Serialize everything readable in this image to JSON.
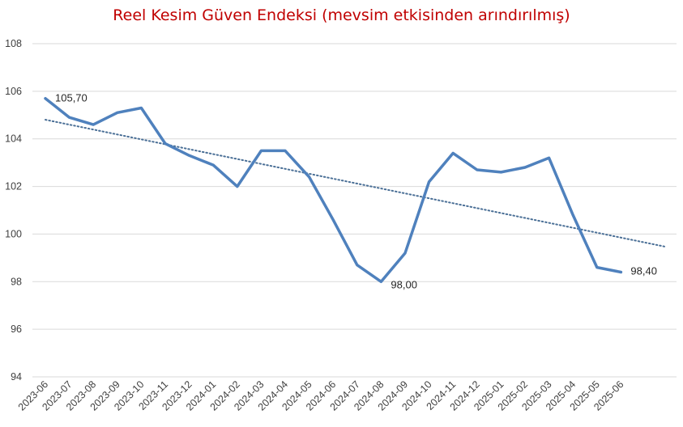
{
  "chart_data": {
    "type": "line",
    "title": "Reel Kesim Güven Endeksi (mevsim etkisinden arındırılmış)",
    "xlabel": "",
    "ylabel": "",
    "categories": [
      "2023-06",
      "2023-07",
      "2023-08",
      "2023-09",
      "2023-10",
      "2023-11",
      "2023-12",
      "2024-01",
      "2024-02",
      "2024-03",
      "2024-04",
      "2024-05",
      "2024-06",
      "2024-07",
      "2024-08",
      "2024-09",
      "2024-10",
      "2024-11",
      "2024-12",
      "2025-01",
      "2025-02",
      "2025-03",
      "2025-04",
      "2025-05",
      "2025-06"
    ],
    "series": [
      {
        "values": [
          105.7,
          104.9,
          104.6,
          105.1,
          105.3,
          103.8,
          103.3,
          102.9,
          102.0,
          103.5,
          103.5,
          102.4,
          100.6,
          98.7,
          98.0,
          99.2,
          102.2,
          103.4,
          102.7,
          102.6,
          102.8,
          103.2,
          100.8,
          98.6,
          98.4
        ]
      }
    ],
    "trendline": {
      "type": "linear",
      "style": "dotted"
    },
    "data_labels": [
      {
        "category": "2023-06",
        "text": "105,70"
      },
      {
        "category": "2024-08",
        "text": "98,00"
      },
      {
        "category": "2025-06",
        "text": "98,40"
      }
    ],
    "ylim": [
      94,
      108
    ],
    "yticks": [
      "94",
      "96",
      "98",
      "100",
      "102",
      "104",
      "106",
      "108"
    ],
    "grid": "horizontal",
    "legend": "none",
    "colors": {
      "line": "#4f81bd",
      "trend": "#4a6f96",
      "title": "#c00000",
      "grid": "#d9d9d9"
    }
  }
}
